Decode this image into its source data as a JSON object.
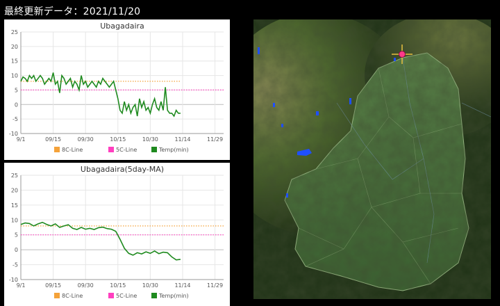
{
  "header": {
    "last_updated": "最終更新データ：2021/11/20"
  },
  "colors": {
    "line_8c": "#f4a23a",
    "line_5c": "#ff3fbf",
    "temp": "#1f8a1f"
  },
  "legend_labels": [
    "8C-Line",
    "5C-Line",
    "Temp(min)"
  ],
  "chart_data": [
    {
      "type": "line",
      "title": "Ubagadaira",
      "x_tick_labels": [
        "9/1",
        "09/15",
        "09/30",
        "10/15",
        "10/30",
        "11/14",
        "11/29"
      ],
      "x_range_days": [
        0,
        94
      ],
      "y_ticks": [
        -10,
        -5,
        0,
        5,
        10,
        15,
        20,
        25
      ],
      "ylim": [
        -10,
        25
      ],
      "grid": true,
      "legend_position": "bottom",
      "series": [
        {
          "name": "8C-Line",
          "color": "#f4a23a",
          "style": "dotted",
          "values": [
            [
              0,
              8
            ],
            [
              74,
              8
            ]
          ]
        },
        {
          "name": "5C-Line",
          "color": "#ff3fbf",
          "style": "dotted",
          "values": [
            [
              0,
              5
            ],
            [
              94,
              5
            ]
          ]
        },
        {
          "name": "Temp(min)",
          "color": "#1f8a1f",
          "style": "solid",
          "values": [
            [
              0,
              8
            ],
            [
              1,
              9.5
            ],
            [
              2,
              9
            ],
            [
              3,
              8
            ],
            [
              4,
              10
            ],
            [
              5,
              9
            ],
            [
              6,
              10
            ],
            [
              7,
              8
            ],
            [
              8,
              9
            ],
            [
              9,
              10
            ],
            [
              10,
              9
            ],
            [
              11,
              7
            ],
            [
              12,
              8
            ],
            [
              13,
              9
            ],
            [
              14,
              8
            ],
            [
              15,
              11
            ],
            [
              16,
              7
            ],
            [
              17,
              8
            ],
            [
              18,
              4
            ],
            [
              19,
              10
            ],
            [
              20,
              9
            ],
            [
              21,
              7
            ],
            [
              22,
              8
            ],
            [
              23,
              9
            ],
            [
              24,
              6
            ],
            [
              25,
              8
            ],
            [
              26,
              7
            ],
            [
              27,
              5
            ],
            [
              28,
              10
            ],
            [
              29,
              7
            ],
            [
              30,
              8
            ],
            [
              31,
              6
            ],
            [
              32,
              7
            ],
            [
              33,
              8
            ],
            [
              34,
              7
            ],
            [
              35,
              6
            ],
            [
              36,
              8
            ],
            [
              37,
              7
            ],
            [
              38,
              9
            ],
            [
              39,
              8
            ],
            [
              40,
              7
            ],
            [
              41,
              6
            ],
            [
              42,
              7
            ],
            [
              43,
              8
            ],
            [
              44,
              5
            ],
            [
              45,
              2
            ],
            [
              46,
              -2
            ],
            [
              47,
              -3
            ],
            [
              48,
              1
            ],
            [
              49,
              -2
            ],
            [
              50,
              0
            ],
            [
              51,
              -3
            ],
            [
              52,
              -1
            ],
            [
              53,
              0
            ],
            [
              54,
              -4
            ],
            [
              55,
              2
            ],
            [
              56,
              -1
            ],
            [
              57,
              1
            ],
            [
              58,
              -2
            ],
            [
              59,
              -1
            ],
            [
              60,
              -3
            ],
            [
              61,
              0
            ],
            [
              62,
              2
            ],
            [
              63,
              -1
            ],
            [
              64,
              -2
            ],
            [
              65,
              1
            ],
            [
              66,
              -2
            ],
            [
              67,
              6
            ],
            [
              68,
              -2
            ],
            [
              69,
              -3
            ],
            [
              70,
              -3
            ],
            [
              71,
              -4
            ],
            [
              72,
              -2
            ],
            [
              73,
              -3
            ],
            [
              74,
              -3
            ]
          ]
        }
      ]
    },
    {
      "type": "line",
      "title": "Ubagadaira(5day-MA)",
      "x_tick_labels": [
        "9/1",
        "09/15",
        "09/30",
        "10/15",
        "10/30",
        "11/14",
        "11/29"
      ],
      "x_range_days": [
        0,
        94
      ],
      "y_ticks": [
        -10,
        -5,
        0,
        5,
        10,
        15,
        20,
        25
      ],
      "ylim": [
        -10,
        25
      ],
      "grid": true,
      "legend_position": "bottom",
      "series": [
        {
          "name": "8C-Line",
          "color": "#f4a23a",
          "style": "dotted",
          "values": [
            [
              0,
              8
            ],
            [
              94,
              8
            ]
          ]
        },
        {
          "name": "5C-Line",
          "color": "#ff3fbf",
          "style": "dotted",
          "values": [
            [
              0,
              5
            ],
            [
              94,
              5
            ]
          ]
        },
        {
          "name": "Temp(min)",
          "color": "#1f8a1f",
          "style": "solid",
          "values": [
            [
              0,
              8.5
            ],
            [
              2,
              9
            ],
            [
              4,
              8.8
            ],
            [
              6,
              8
            ],
            [
              8,
              8.7
            ],
            [
              10,
              9.2
            ],
            [
              12,
              8.5
            ],
            [
              14,
              8
            ],
            [
              16,
              8.7
            ],
            [
              18,
              7.5
            ],
            [
              20,
              8
            ],
            [
              22,
              8.4
            ],
            [
              24,
              7.2
            ],
            [
              26,
              6.8
            ],
            [
              28,
              7.5
            ],
            [
              30,
              6.9
            ],
            [
              32,
              7.2
            ],
            [
              34,
              6.8
            ],
            [
              36,
              7.4
            ],
            [
              38,
              7.6
            ],
            [
              40,
              7.1
            ],
            [
              42,
              6.9
            ],
            [
              44,
              6.2
            ],
            [
              46,
              3.5
            ],
            [
              48,
              0.5
            ],
            [
              50,
              -1.2
            ],
            [
              52,
              -1.8
            ],
            [
              54,
              -1
            ],
            [
              56,
              -1.4
            ],
            [
              58,
              -0.7
            ],
            [
              60,
              -1.2
            ],
            [
              62,
              -0.4
            ],
            [
              64,
              -1.3
            ],
            [
              66,
              -0.8
            ],
            [
              68,
              -1
            ],
            [
              70,
              -2.4
            ],
            [
              72,
              -3.4
            ],
            [
              74,
              -3.2
            ]
          ]
        }
      ]
    }
  ]
}
